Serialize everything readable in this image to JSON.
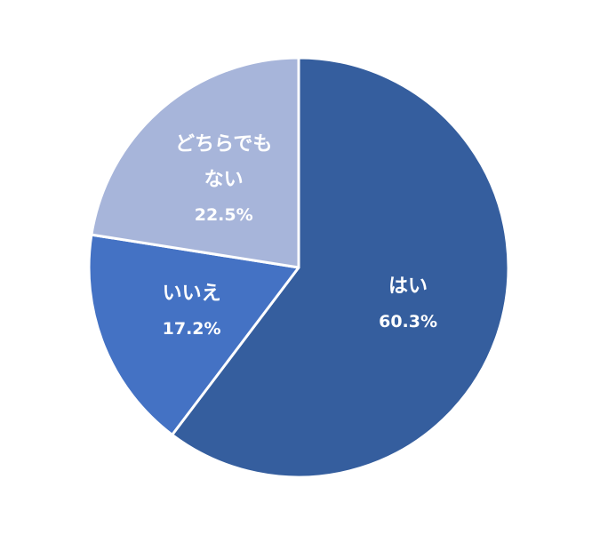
{
  "chart_data": {
    "type": "pie",
    "categories": [
      "はい",
      "いいえ",
      "どちらでもない"
    ],
    "values": [
      60.3,
      17.2,
      22.5
    ],
    "value_labels": [
      "60.3%",
      "17.2%",
      "22.5%"
    ],
    "colors": [
      "#355e9e",
      "#4472c4",
      "#a7b5da"
    ]
  }
}
